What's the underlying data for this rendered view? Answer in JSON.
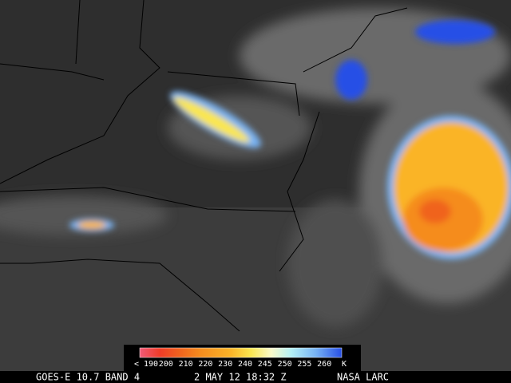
{
  "colorbar": {
    "labels": [
      "< 190",
      "200",
      "210",
      "220",
      "230",
      "240",
      "245",
      "250",
      "255",
      "260",
      "K"
    ]
  },
  "footer": {
    "sensor": "GOES-E 10.7 BAND 4",
    "time": "2 MAY 12 18:32 Z",
    "source": "NASA LARC"
  }
}
